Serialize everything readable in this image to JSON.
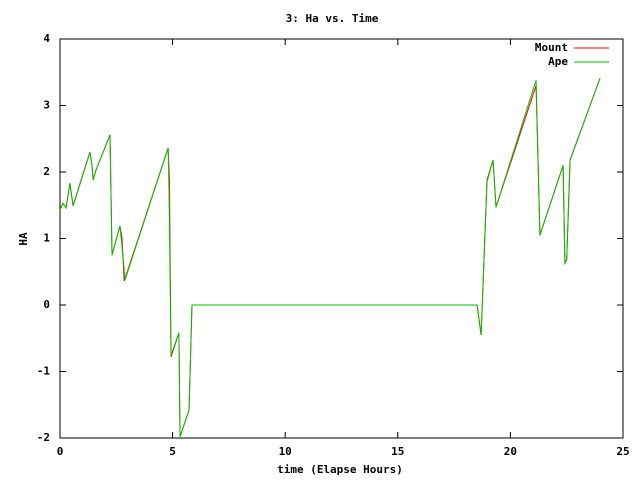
{
  "chart_data": {
    "type": "line",
    "title": "3: Ha vs. Time",
    "xlabel": "time (Elapse Hours)",
    "ylabel": "HA",
    "xlim": [
      0,
      25
    ],
    "xticks": [
      0,
      5,
      10,
      15,
      20,
      25
    ],
    "ylim": [
      -2,
      4
    ],
    "yticks": [
      -2,
      -1,
      0,
      1,
      2,
      3,
      4
    ],
    "legend": "top-right",
    "series": [
      {
        "name": "Mount",
        "color": "#ff0000",
        "x": [
          0,
          0.13,
          0.27,
          0.44,
          0.58,
          1.33,
          1.42,
          1.47,
          1.6,
          2.22,
          2.31,
          2.66,
          2.75,
          2.85,
          4.8,
          4.86,
          4.93,
          5.28,
          5.33,
          5.73,
          5.86,
          18.52,
          18.7,
          18.96,
          19.23,
          19.36,
          21.14,
          21.31,
          22.34,
          22.42,
          22.5,
          22.65,
          23.98
        ],
        "values": [
          1.43,
          1.53,
          1.46,
          1.83,
          1.49,
          2.3,
          2.1,
          1.88,
          2.03,
          2.56,
          0.75,
          1.19,
          1.02,
          0.36,
          2.36,
          1.88,
          -0.78,
          -0.42,
          -1.98,
          -1.58,
          0,
          0,
          -0.45,
          1.88,
          2.18,
          1.47,
          3.3,
          1.05,
          2.1,
          0.63,
          0.68,
          2.18,
          3.41
        ]
      },
      {
        "name": "Ape",
        "color": "#00c000",
        "x": [
          0,
          0.13,
          0.27,
          0.44,
          0.58,
          1.33,
          1.42,
          1.47,
          1.6,
          2.22,
          2.31,
          2.66,
          2.75,
          2.89,
          4.8,
          4.84,
          4.93,
          5.28,
          5.33,
          5.73,
          5.86,
          18.52,
          18.7,
          18.96,
          19.23,
          19.36,
          21.14,
          21.31,
          22.34,
          22.42,
          22.5,
          22.65,
          23.98
        ],
        "values": [
          1.43,
          1.53,
          1.46,
          1.83,
          1.49,
          2.3,
          2.1,
          1.88,
          2.03,
          2.56,
          0.75,
          1.19,
          0.89,
          0.38,
          2.36,
          1.73,
          -0.75,
          -0.42,
          -1.98,
          -1.58,
          0,
          0,
          -0.45,
          1.85,
          2.18,
          1.47,
          3.38,
          1.05,
          2.1,
          0.63,
          0.68,
          2.18,
          3.41
        ]
      }
    ]
  }
}
